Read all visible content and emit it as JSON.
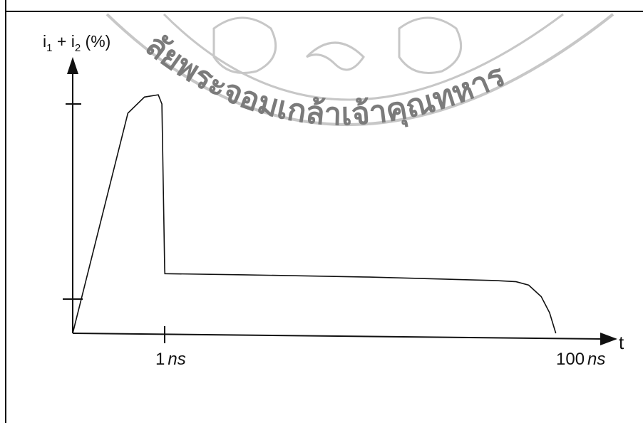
{
  "chart_data": {
    "type": "line",
    "title": "",
    "ylabel": {
      "base1": "i",
      "sub1": "1",
      "plus": " + ",
      "base2": "i",
      "sub2": "2",
      "unit": " (%)"
    },
    "xlabel": "t",
    "x_ticks": [
      {
        "value": 1,
        "number": "1",
        "unit": "ns"
      },
      {
        "value": 100,
        "number": "100",
        "unit": "ns"
      }
    ],
    "y_ticks_unlabeled": [
      20,
      100
    ],
    "series": [
      {
        "points": [
          {
            "x": 0,
            "y": 0
          },
          {
            "x": 0.6,
            "y": 96
          },
          {
            "x": 0.78,
            "y": 103
          },
          {
            "x": 0.93,
            "y": 104
          },
          {
            "x": 0.97,
            "y": 100
          },
          {
            "x": 1.0,
            "y": 28
          },
          {
            "x": 1.05,
            "y": 26
          },
          {
            "x": 20,
            "y": 25.5
          },
          {
            "x": 50,
            "y": 24.5
          },
          {
            "x": 80,
            "y": 23
          },
          {
            "x": 85,
            "y": 22.5
          },
          {
            "x": 88,
            "y": 21
          },
          {
            "x": 91,
            "y": 16
          },
          {
            "x": 93,
            "y": 9
          },
          {
            "x": 94.5,
            "y": 0
          }
        ]
      }
    ]
  },
  "watermark": {
    "text": "ลัยพระจอมเกล้าเจ้าคุณทหาร",
    "color": "#9a9a9a"
  },
  "colors": {
    "line": "#111111",
    "background": "#ffffff"
  }
}
